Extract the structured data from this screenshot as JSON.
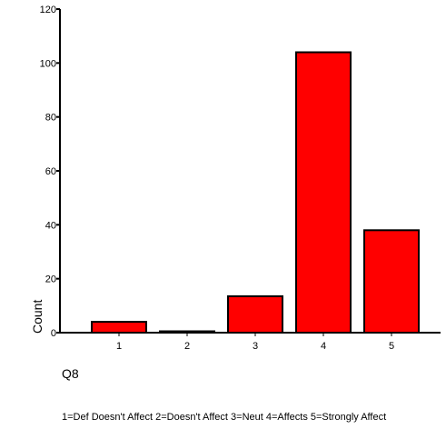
{
  "chart_data": {
    "type": "bar",
    "categories": [
      "1",
      "2",
      "3",
      "4",
      "5"
    ],
    "values": [
      4,
      0.5,
      13.5,
      104,
      38
    ],
    "xlabel": "Q8",
    "ylabel": "Count",
    "ylim": [
      0,
      120
    ],
    "yticks": [
      0,
      20,
      40,
      60,
      80,
      100,
      120
    ],
    "note": "1=Def Doesn't Affect 2=Doesn't Affect 3=Neut 4=Affects 5=Strongly Affect",
    "bar_color": "#ff0000",
    "grid": false,
    "legend": "none"
  }
}
